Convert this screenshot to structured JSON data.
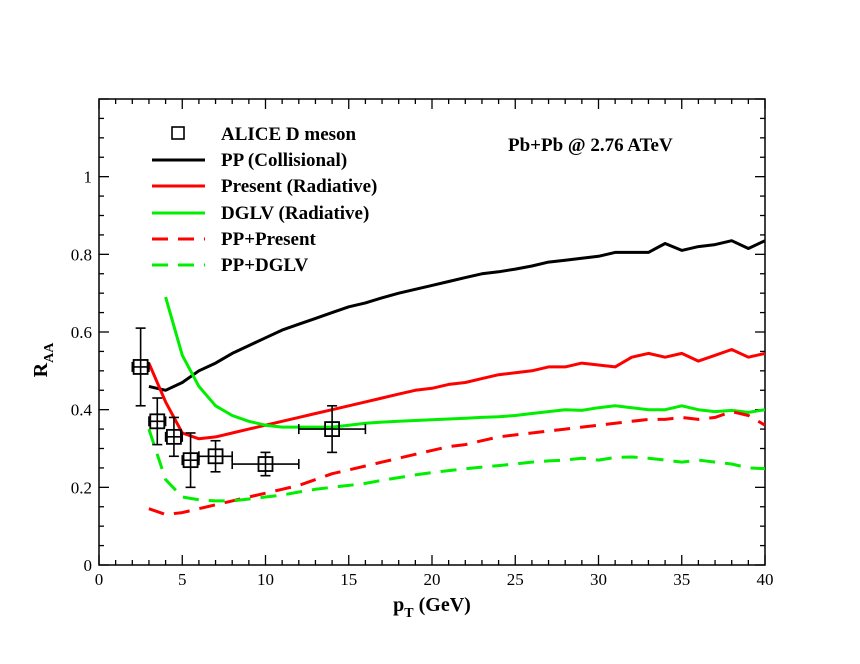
{
  "chart_data": {
    "type": "line",
    "title": "",
    "annotation": "Pb+Pb @ 2.76 ATeV",
    "xlabel": "p",
    "xlabel_sub": "T",
    "xlabel_unit": " (GeV)",
    "ylabel": "R",
    "ylabel_sub": "AA",
    "xlim": [
      0,
      40
    ],
    "ylim": [
      0,
      1.2
    ],
    "x_ticks": [
      0,
      5,
      10,
      15,
      20,
      25,
      30,
      35,
      40
    ],
    "x_tick_labels": [
      "0",
      "5",
      "10",
      "15",
      "20",
      "25",
      "30",
      "35",
      "40"
    ],
    "y_ticks": [
      0,
      0.2,
      0.4,
      0.6,
      0.8,
      1
    ],
    "y_tick_labels": [
      "0",
      "0.2",
      "0.4",
      "0.6",
      "0.8",
      "1"
    ],
    "legend_position": "top-left",
    "data_points": {
      "name": "ALICE D meson",
      "marker": "open-square",
      "color": "#000000",
      "points": [
        {
          "x": 2.5,
          "y": 0.51,
          "xerr": 0.5,
          "yerr": 0.1
        },
        {
          "x": 3.5,
          "y": 0.37,
          "xerr": 0.5,
          "yerr": 0.06
        },
        {
          "x": 4.5,
          "y": 0.33,
          "xerr": 0.5,
          "yerr": 0.05
        },
        {
          "x": 5.5,
          "y": 0.27,
          "xerr": 0.5,
          "yerr": 0.07
        },
        {
          "x": 7.0,
          "y": 0.28,
          "xerr": 1.0,
          "yerr": 0.04
        },
        {
          "x": 10.0,
          "y": 0.26,
          "xerr": 2.0,
          "yerr": 0.03
        },
        {
          "x": 14.0,
          "y": 0.35,
          "xerr": 2.0,
          "yerr": 0.06
        }
      ]
    },
    "series": [
      {
        "name": "PP (Collisional)",
        "color": "#000000",
        "style": "solid",
        "x": [
          3,
          4,
          5,
          6,
          7,
          8,
          9,
          10,
          11,
          12,
          13,
          14,
          15,
          16,
          17,
          18,
          19,
          20,
          21,
          22,
          23,
          24,
          25,
          26,
          27,
          28,
          29,
          30,
          31,
          32,
          33,
          34,
          35,
          36,
          37,
          38,
          39,
          40
        ],
        "values": [
          0.46,
          0.45,
          0.47,
          0.5,
          0.52,
          0.545,
          0.565,
          0.585,
          0.605,
          0.62,
          0.635,
          0.65,
          0.665,
          0.675,
          0.688,
          0.7,
          0.71,
          0.72,
          0.73,
          0.74,
          0.75,
          0.755,
          0.762,
          0.77,
          0.78,
          0.785,
          0.79,
          0.795,
          0.805,
          0.805,
          0.805,
          0.828,
          0.81,
          0.82,
          0.825,
          0.835,
          0.815,
          0.835
        ]
      },
      {
        "name": "Present (Radiative)",
        "color": "#ff0000",
        "style": "solid",
        "x": [
          3,
          4,
          5,
          6,
          7,
          8,
          9,
          10,
          11,
          12,
          13,
          14,
          15,
          16,
          17,
          18,
          19,
          20,
          21,
          22,
          23,
          24,
          25,
          26,
          27,
          28,
          29,
          30,
          31,
          32,
          33,
          34,
          35,
          36,
          37,
          38,
          39,
          40
        ],
        "values": [
          0.52,
          0.42,
          0.34,
          0.325,
          0.33,
          0.34,
          0.35,
          0.36,
          0.37,
          0.38,
          0.39,
          0.4,
          0.41,
          0.42,
          0.43,
          0.44,
          0.45,
          0.455,
          0.465,
          0.47,
          0.48,
          0.49,
          0.495,
          0.5,
          0.51,
          0.51,
          0.52,
          0.515,
          0.51,
          0.535,
          0.545,
          0.535,
          0.545,
          0.525,
          0.54,
          0.555,
          0.535,
          0.545
        ]
      },
      {
        "name": "DGLV (Radiative)",
        "color": "#00ee00",
        "style": "solid",
        "x": [
          4,
          5,
          6,
          7,
          8,
          9,
          10,
          11,
          12,
          13,
          14,
          15,
          16,
          17,
          18,
          19,
          20,
          21,
          22,
          23,
          24,
          25,
          26,
          27,
          28,
          29,
          30,
          31,
          32,
          33,
          34,
          35,
          36,
          37,
          38,
          39,
          40
        ],
        "values": [
          0.69,
          0.54,
          0.46,
          0.41,
          0.385,
          0.37,
          0.36,
          0.355,
          0.355,
          0.355,
          0.355,
          0.36,
          0.365,
          0.368,
          0.37,
          0.372,
          0.374,
          0.376,
          0.378,
          0.38,
          0.382,
          0.385,
          0.39,
          0.395,
          0.4,
          0.398,
          0.405,
          0.41,
          0.405,
          0.4,
          0.4,
          0.41,
          0.4,
          0.395,
          0.398,
          0.393,
          0.4
        ]
      },
      {
        "name": "PP+Present",
        "color": "#ff0000",
        "style": "dashed",
        "x": [
          3,
          4,
          5,
          6,
          7,
          8,
          9,
          10,
          11,
          12,
          13,
          14,
          15,
          16,
          17,
          18,
          19,
          20,
          21,
          22,
          23,
          24,
          25,
          26,
          27,
          28,
          29,
          30,
          31,
          32,
          33,
          34,
          35,
          36,
          37,
          38,
          39,
          40
        ],
        "values": [
          0.145,
          0.13,
          0.135,
          0.145,
          0.155,
          0.165,
          0.175,
          0.185,
          0.195,
          0.205,
          0.22,
          0.235,
          0.245,
          0.255,
          0.265,
          0.275,
          0.285,
          0.295,
          0.305,
          0.31,
          0.32,
          0.33,
          0.335,
          0.34,
          0.345,
          0.35,
          0.355,
          0.36,
          0.365,
          0.37,
          0.375,
          0.375,
          0.38,
          0.375,
          0.38,
          0.395,
          0.385,
          0.36
        ]
      },
      {
        "name": "PP+DGLV",
        "color": "#00ee00",
        "style": "dashed",
        "x": [
          3,
          4,
          5,
          6,
          7,
          8,
          9,
          10,
          11,
          12,
          13,
          14,
          15,
          16,
          17,
          18,
          19,
          20,
          21,
          22,
          23,
          24,
          25,
          26,
          27,
          28,
          29,
          30,
          31,
          32,
          33,
          34,
          35,
          36,
          37,
          38,
          39,
          40
        ],
        "values": [
          0.35,
          0.22,
          0.175,
          0.168,
          0.165,
          0.165,
          0.17,
          0.175,
          0.18,
          0.188,
          0.195,
          0.2,
          0.205,
          0.21,
          0.218,
          0.225,
          0.232,
          0.238,
          0.243,
          0.248,
          0.252,
          0.256,
          0.26,
          0.265,
          0.268,
          0.27,
          0.275,
          0.27,
          0.277,
          0.278,
          0.275,
          0.27,
          0.265,
          0.27,
          0.265,
          0.26,
          0.25,
          0.248
        ]
      }
    ]
  }
}
